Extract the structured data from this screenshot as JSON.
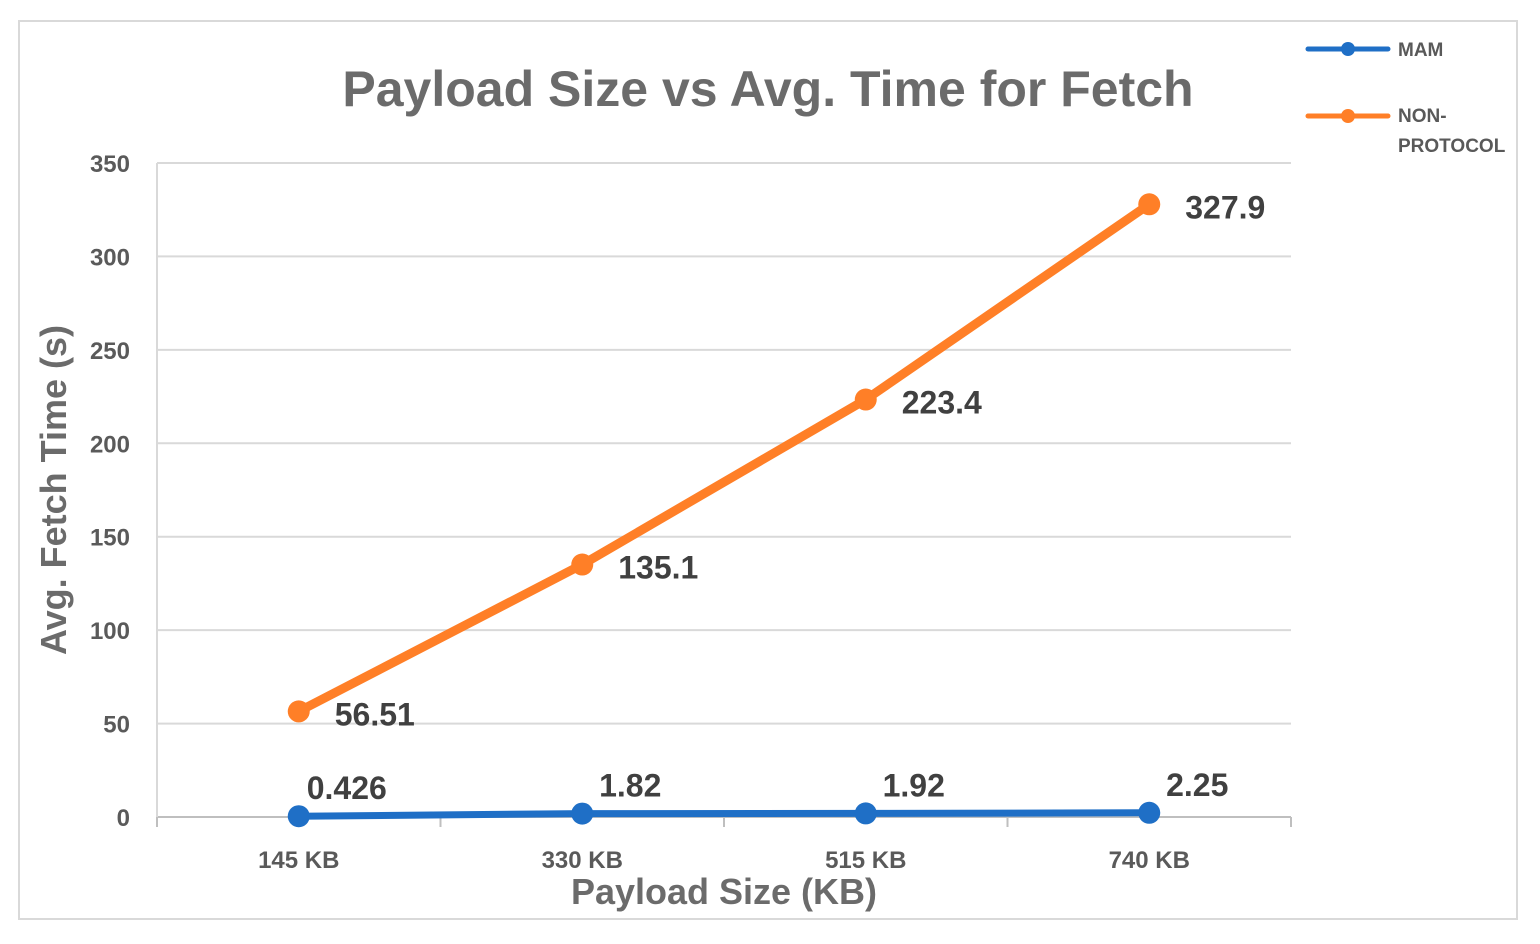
{
  "chart_data": {
    "type": "line",
    "title": "Payload Size vs Avg. Time for Fetch",
    "xlabel": "Payload Size (KB)",
    "ylabel": "Avg. Fetch Time (s)",
    "categories": [
      "145 KB",
      "330 KB",
      "515 KB",
      "740 KB"
    ],
    "ylim": [
      0,
      350
    ],
    "yticks": [
      0,
      50,
      100,
      150,
      200,
      250,
      300,
      350
    ],
    "grid": true,
    "legend_position": "top-right",
    "series": [
      {
        "name": "MAM",
        "values": [
          0.426,
          1.82,
          1.92,
          2.25
        ],
        "labels": [
          "0.426",
          "1.82",
          "1.92",
          "2.25"
        ],
        "color": "#1f6fc6"
      },
      {
        "name": "NON-PROTOCOL",
        "legend_lines": [
          "NON-",
          "PROTOCOL"
        ],
        "values": [
          56.51,
          135.1,
          223.4,
          327.9
        ],
        "labels": [
          "56.51",
          "135.1",
          "223.4",
          "327.9"
        ],
        "color": "#ff7f27"
      }
    ]
  }
}
